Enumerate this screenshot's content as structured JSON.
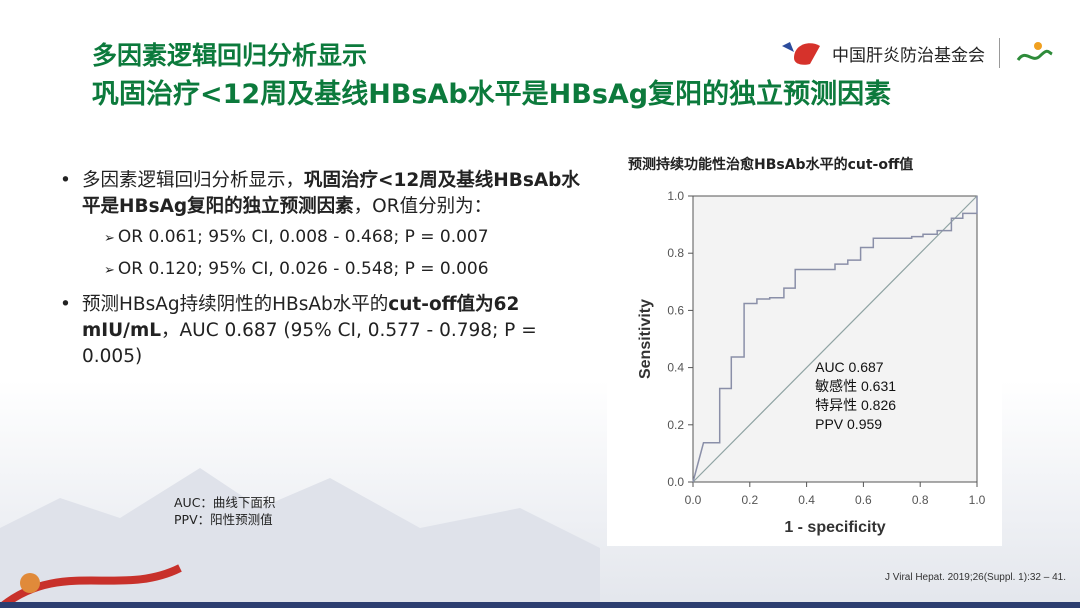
{
  "slide": {
    "title_line1": "多因素逻辑回归分析显示",
    "title_line2": "巩固治疗<12周及基线HBsAb水平是HBsAg复阳的独立预测因素",
    "logo_text": "中国肝炎防治基金会",
    "bullets": [
      {
        "pre": "多因素逻辑回归分析显示，",
        "bold": "巩固治疗<12周及基线HBsAb水平是HBsAg复阳的独立预测因素",
        "post": "，OR值分别为："
      },
      {
        "pre": "预测HBsAg持续阴性的HBsAb水平的",
        "bold": "cut-off值为62 mIU/mL",
        "post": "，AUC 0.687 (95% CI, 0.577 - 0.798; P = 0.005)"
      }
    ],
    "sub_bullets": [
      "OR 0.061; 95% CI, 0.008 - 0.468; P = 0.007",
      "OR 0.120; 95% CI, 0.026 - 0.548; P = 0.006"
    ],
    "notes": [
      "AUC：曲线下面积",
      "PPV：阳性预测值"
    ],
    "reference": "J Viral Hepat. 2019;26(Suppl. 1):32 – 41.",
    "colors": {
      "title": "#0c7a3c",
      "curve": "#8a8fa8",
      "footer_bar": "#2c3e70"
    }
  },
  "chart_data": {
    "type": "line",
    "title": "预测持续功能性治愈HBsAb水平的cut-off值",
    "xlabel": "1 - specificity",
    "ylabel": "Sensitivity",
    "xlim": [
      0,
      1
    ],
    "ylim": [
      0,
      1
    ],
    "xticks": [
      "0.0",
      "0.2",
      "0.4",
      "0.6",
      "0.8",
      "1.0"
    ],
    "yticks": [
      "0.0",
      "0.2",
      "0.4",
      "0.6",
      "0.8",
      "1.0"
    ],
    "grid": false,
    "series": [
      {
        "x": [
          0,
          0.037,
          0.094,
          0.094,
          0.135,
          0.135,
          0.18,
          0.18,
          0.225,
          0.225,
          0.27,
          0.27,
          0.32,
          0.32,
          0.36,
          0.36,
          0.5,
          0.5,
          0.545,
          0.545,
          0.59,
          0.59,
          0.635,
          0.635,
          0.77,
          0.77,
          0.81,
          0.81,
          0.86,
          0.86,
          0.91,
          0.91,
          0.95,
          0.95,
          1.0,
          1.0
        ],
        "y": [
          0,
          0.137,
          0.137,
          0.327,
          0.327,
          0.437,
          0.437,
          0.624,
          0.624,
          0.64,
          0.64,
          0.644,
          0.644,
          0.678,
          0.678,
          0.743,
          0.743,
          0.762,
          0.762,
          0.776,
          0.776,
          0.82,
          0.82,
          0.852,
          0.852,
          0.858,
          0.858,
          0.866,
          0.866,
          0.879,
          0.879,
          0.922,
          0.922,
          0.939,
          0.939,
          1.0
        ]
      },
      {
        "x": [
          0,
          1
        ],
        "y": [
          0,
          1
        ]
      }
    ],
    "annotations": [
      "AUC 0.687",
      "敏感性 0.631",
      "特异性 0.826",
      "PPV 0.959"
    ]
  }
}
